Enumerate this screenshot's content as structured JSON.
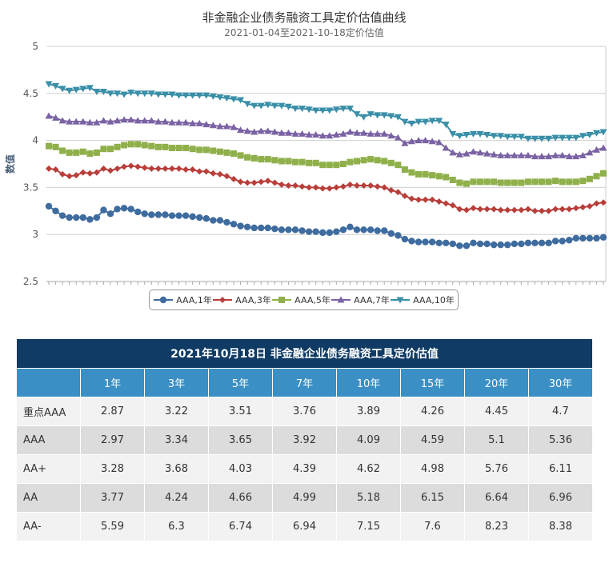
{
  "chart_data": {
    "type": "line",
    "title": "非金融企业债务融资工具定价估值曲线",
    "subtitle": "2021-01-04至2021-10-18定价估值",
    "ylabel": "数值",
    "xlabel": "",
    "ylim": [
      2.5,
      5
    ],
    "yticks": [
      "2.5",
      "3",
      "3.5",
      "4",
      "4.5",
      "5"
    ],
    "grid": true,
    "legend_position": "bottom",
    "series": [
      {
        "name": "AAA,1年",
        "color": "#3f6c9f",
        "marker": "circle",
        "values": [
          3.3,
          3.25,
          3.2,
          3.18,
          3.18,
          3.18,
          3.16,
          3.18,
          3.26,
          3.22,
          3.27,
          3.28,
          3.27,
          3.24,
          3.22,
          3.21,
          3.21,
          3.21,
          3.2,
          3.2,
          3.2,
          3.19,
          3.18,
          3.17,
          3.15,
          3.15,
          3.13,
          3.11,
          3.09,
          3.08,
          3.07,
          3.07,
          3.07,
          3.06,
          3.05,
          3.05,
          3.05,
          3.04,
          3.03,
          3.03,
          3.02,
          3.02,
          3.03,
          3.05,
          3.08,
          3.05,
          3.05,
          3.05,
          3.04,
          3.04,
          3.01,
          2.99,
          2.95,
          2.93,
          2.92,
          2.92,
          2.92,
          2.91,
          2.91,
          2.9,
          2.88,
          2.88,
          2.91,
          2.9,
          2.9,
          2.89,
          2.89,
          2.89,
          2.9,
          2.9,
          2.91,
          2.91,
          2.91,
          2.91,
          2.93,
          2.93,
          2.94,
          2.96,
          2.96,
          2.96,
          2.96,
          2.97
        ]
      },
      {
        "name": "AAA,3年",
        "color": "#b83e3a",
        "marker": "diamond",
        "values": [
          3.7,
          3.69,
          3.64,
          3.62,
          3.63,
          3.66,
          3.65,
          3.66,
          3.7,
          3.68,
          3.7,
          3.72,
          3.73,
          3.72,
          3.71,
          3.7,
          3.7,
          3.7,
          3.7,
          3.7,
          3.69,
          3.69,
          3.67,
          3.67,
          3.65,
          3.64,
          3.62,
          3.59,
          3.56,
          3.55,
          3.55,
          3.56,
          3.57,
          3.55,
          3.53,
          3.52,
          3.52,
          3.51,
          3.5,
          3.5,
          3.49,
          3.49,
          3.5,
          3.51,
          3.53,
          3.52,
          3.52,
          3.52,
          3.51,
          3.5,
          3.47,
          3.45,
          3.41,
          3.38,
          3.37,
          3.37,
          3.37,
          3.35,
          3.33,
          3.31,
          3.27,
          3.26,
          3.28,
          3.27,
          3.27,
          3.27,
          3.26,
          3.26,
          3.26,
          3.26,
          3.27,
          3.25,
          3.25,
          3.25,
          3.27,
          3.27,
          3.27,
          3.28,
          3.29,
          3.3,
          3.33,
          3.34
        ]
      },
      {
        "name": "AAA,5年",
        "color": "#8fb04a",
        "marker": "square",
        "values": [
          3.94,
          3.93,
          3.89,
          3.87,
          3.87,
          3.88,
          3.86,
          3.87,
          3.91,
          3.91,
          3.93,
          3.95,
          3.96,
          3.96,
          3.95,
          3.94,
          3.93,
          3.93,
          3.92,
          3.92,
          3.92,
          3.91,
          3.9,
          3.9,
          3.89,
          3.88,
          3.87,
          3.86,
          3.84,
          3.82,
          3.81,
          3.8,
          3.8,
          3.79,
          3.78,
          3.78,
          3.77,
          3.77,
          3.76,
          3.76,
          3.74,
          3.74,
          3.74,
          3.75,
          3.77,
          3.78,
          3.79,
          3.8,
          3.79,
          3.78,
          3.76,
          3.74,
          3.69,
          3.66,
          3.64,
          3.64,
          3.63,
          3.62,
          3.61,
          3.58,
          3.55,
          3.54,
          3.56,
          3.56,
          3.56,
          3.56,
          3.55,
          3.55,
          3.55,
          3.55,
          3.56,
          3.56,
          3.56,
          3.56,
          3.57,
          3.56,
          3.56,
          3.56,
          3.57,
          3.59,
          3.62,
          3.65
        ]
      },
      {
        "name": "AAA,7年",
        "color": "#7a62a3",
        "marker": "triangle-up",
        "values": [
          4.26,
          4.24,
          4.21,
          4.2,
          4.2,
          4.2,
          4.19,
          4.19,
          4.21,
          4.2,
          4.21,
          4.22,
          4.22,
          4.21,
          4.21,
          4.21,
          4.2,
          4.2,
          4.19,
          4.19,
          4.19,
          4.18,
          4.18,
          4.17,
          4.16,
          4.15,
          4.15,
          4.14,
          4.11,
          4.1,
          4.09,
          4.1,
          4.1,
          4.09,
          4.08,
          4.08,
          4.07,
          4.07,
          4.06,
          4.06,
          4.05,
          4.05,
          4.06,
          4.07,
          4.09,
          4.08,
          4.08,
          4.07,
          4.07,
          4.07,
          4.05,
          4.03,
          3.97,
          3.99,
          4.0,
          4.0,
          3.99,
          3.98,
          3.92,
          3.87,
          3.85,
          3.86,
          3.88,
          3.87,
          3.86,
          3.85,
          3.84,
          3.84,
          3.84,
          3.84,
          3.84,
          3.83,
          3.83,
          3.83,
          3.84,
          3.84,
          3.83,
          3.83,
          3.84,
          3.87,
          3.9,
          3.92
        ]
      },
      {
        "name": "AAA,10年",
        "color": "#3a8fa8",
        "marker": "triangle-down",
        "values": [
          4.6,
          4.58,
          4.55,
          4.53,
          4.54,
          4.55,
          4.56,
          4.52,
          4.52,
          4.5,
          4.5,
          4.49,
          4.51,
          4.5,
          4.5,
          4.5,
          4.49,
          4.49,
          4.49,
          4.48,
          4.48,
          4.48,
          4.48,
          4.48,
          4.47,
          4.46,
          4.45,
          4.44,
          4.43,
          4.39,
          4.37,
          4.37,
          4.38,
          4.37,
          4.37,
          4.36,
          4.34,
          4.34,
          4.33,
          4.32,
          4.32,
          4.32,
          4.33,
          4.34,
          4.34,
          4.28,
          4.25,
          4.28,
          4.27,
          4.27,
          4.26,
          4.25,
          4.2,
          4.18,
          4.2,
          4.2,
          4.21,
          4.21,
          4.17,
          4.07,
          4.05,
          4.06,
          4.07,
          4.07,
          4.06,
          4.05,
          4.05,
          4.04,
          4.04,
          4.04,
          4.02,
          4.02,
          4.02,
          4.02,
          4.03,
          4.03,
          4.03,
          4.03,
          4.05,
          4.06,
          4.08,
          4.09
        ]
      }
    ]
  },
  "table": {
    "caption": "2021年10月18日  非金融企业债务融资工具定价估值",
    "columns": [
      "1年",
      "3年",
      "5年",
      "7年",
      "10年",
      "15年",
      "20年",
      "30年"
    ],
    "rows": [
      {
        "label": "重点AAA",
        "values": [
          "2.87",
          "3.22",
          "3.51",
          "3.76",
          "3.89",
          "4.26",
          "4.45",
          "4.7"
        ]
      },
      {
        "label": "AAA",
        "values": [
          "2.97",
          "3.34",
          "3.65",
          "3.92",
          "4.09",
          "4.59",
          "5.1",
          "5.36"
        ]
      },
      {
        "label": "AA+",
        "values": [
          "3.28",
          "3.68",
          "4.03",
          "4.39",
          "4.62",
          "4.98",
          "5.76",
          "6.11"
        ]
      },
      {
        "label": "AA",
        "values": [
          "3.77",
          "4.24",
          "4.66",
          "4.99",
          "5.18",
          "6.15",
          "6.64",
          "6.96"
        ]
      },
      {
        "label": "AA-",
        "values": [
          "5.59",
          "6.3",
          "6.74",
          "6.94",
          "7.15",
          "7.6",
          "8.23",
          "8.38"
        ]
      }
    ]
  }
}
